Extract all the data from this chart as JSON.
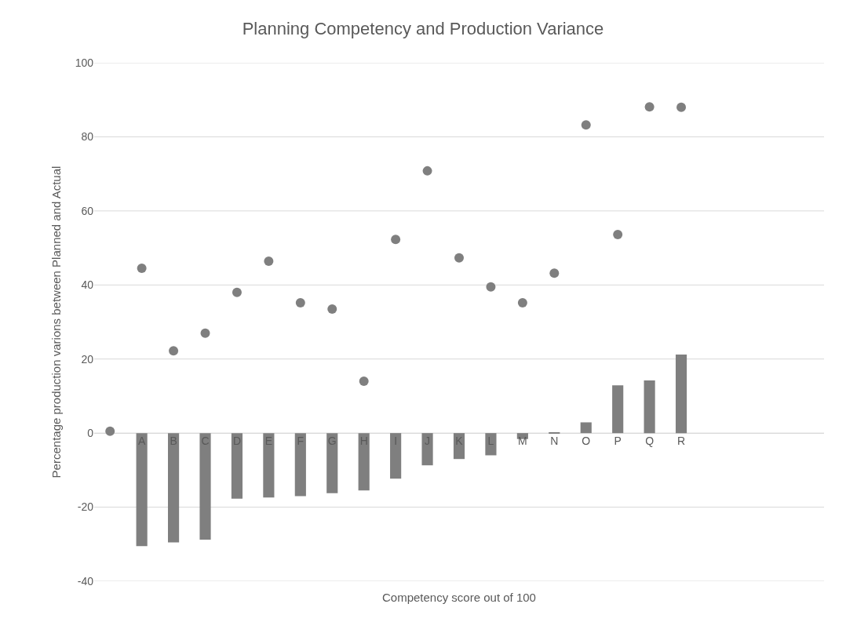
{
  "chart_data": {
    "type": "bar",
    "title": "Planning Competency and Production Variance",
    "xlabel": "Competency score out of 100",
    "ylabel": "Percentage production varions between Planned and Actual",
    "categories": [
      null,
      "A",
      "B",
      "C",
      "D",
      "E",
      "F",
      "G",
      "H",
      "I",
      "J",
      "K",
      "L",
      "M",
      "N",
      "O",
      "P",
      "Q",
      "R",
      null,
      null,
      null,
      null
    ],
    "series": [
      {
        "color": "#7f7f7f",
        "values": [
          null,
          -30.5,
          -29.5,
          -28.8,
          -17.7,
          -17.4,
          -17,
          -16.2,
          -15.5,
          -12.3,
          -8.7,
          -7,
          -6,
          -1.6,
          0.2,
          2.9,
          12.9,
          14.2,
          21.2,
          null,
          null,
          null,
          null
        ]
      },
      {
        "type": "scatter",
        "color": "#7f7f7f",
        "marker": "circle",
        "values": [
          0.5,
          44.5,
          22.2,
          27,
          38,
          46.4,
          35.2,
          33.5,
          14,
          52.3,
          70.8,
          47.3,
          39.5,
          35.2,
          43.2,
          83.2,
          53.6,
          88.1,
          88,
          null,
          null,
          null,
          null
        ]
      }
    ],
    "ylim": [
      -40,
      100
    ],
    "yticks": [
      -40,
      -20,
      0,
      20,
      40,
      60,
      80,
      100
    ],
    "grid": "y",
    "legend": false
  }
}
